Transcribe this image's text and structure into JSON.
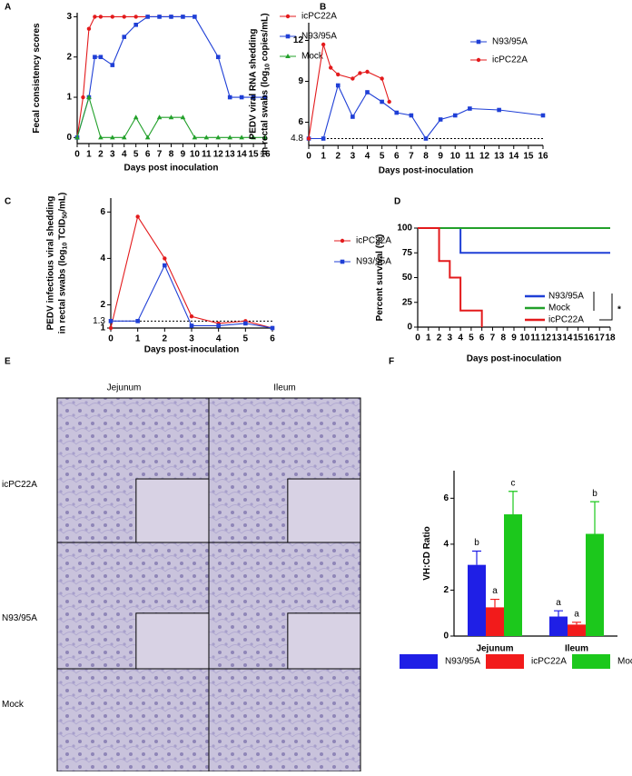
{
  "chart_data": [
    {
      "panel": "A",
      "type": "line",
      "xlabel": "Days post inoculation",
      "ylabel": [
        [
          "Fecal consistency scores"
        ]
      ],
      "xlim": [
        0,
        16
      ],
      "xticks": [
        0,
        1,
        2,
        3,
        4,
        5,
        6,
        7,
        8,
        9,
        10,
        11,
        12,
        13,
        14,
        15,
        16
      ],
      "ylim": [
        -0.15,
        3.1
      ],
      "yticks": [
        0,
        1,
        2,
        3
      ],
      "series": [
        {
          "name": "icPC22A",
          "color": "#e31a1c",
          "marker": "circle",
          "x": [
            0,
            0.5,
            1,
            1.5,
            2,
            3,
            4,
            5,
            6,
            7,
            8,
            9
          ],
          "values": [
            0,
            1,
            2.7,
            3,
            3,
            3,
            3,
            3,
            3,
            3,
            3,
            3
          ]
        },
        {
          "name": "N93/95A",
          "color": "#1f3fd6",
          "marker": "square",
          "x": [
            0,
            1,
            1.5,
            2,
            3,
            4,
            5,
            6,
            7,
            8,
            9,
            10,
            12,
            13,
            14,
            15,
            16
          ],
          "values": [
            0,
            1,
            2,
            2,
            1.8,
            2.5,
            2.8,
            3,
            3,
            3,
            3,
            3,
            2,
            1,
            1,
            1,
            1
          ]
        },
        {
          "name": "Mock",
          "color": "#22a02a",
          "marker": "triangle",
          "x": [
            0,
            1,
            2,
            3,
            4,
            5,
            6,
            7,
            8,
            9,
            10,
            11,
            12,
            13,
            14,
            15,
            16
          ],
          "values": [
            0,
            1,
            0,
            0,
            0,
            0.5,
            0,
            0.5,
            0.5,
            0.5,
            0,
            0,
            0,
            0,
            0,
            0,
            0
          ]
        }
      ]
    },
    {
      "panel": "B",
      "type": "line",
      "xlabel": "Days post-inoculation",
      "ylabel": [
        [
          "PEDV viral RNA shedding"
        ],
        [
          "in rectal swabs (log",
          "10",
          " copies/mL)"
        ]
      ],
      "xlim": [
        0,
        16
      ],
      "xticks": [
        0,
        1,
        2,
        3,
        4,
        5,
        6,
        7,
        8,
        9,
        10,
        11,
        12,
        13,
        14,
        15,
        16
      ],
      "ylim": [
        4.3,
        13.3
      ],
      "yticks": [
        6,
        9,
        12
      ],
      "threshold": 4.8,
      "series": [
        {
          "name": "N93/95A",
          "color": "#1f3fd6",
          "marker": "square",
          "x": [
            0,
            1,
            2,
            3,
            4,
            5,
            6,
            7,
            8,
            9,
            10,
            11,
            13,
            16
          ],
          "values": [
            4.8,
            4.8,
            8.7,
            6.4,
            8.2,
            7.5,
            6.7,
            6.5,
            4.8,
            6.2,
            6.5,
            7.0,
            6.9,
            6.5
          ]
        },
        {
          "name": "icPC22A",
          "color": "#e31a1c",
          "marker": "circle",
          "x": [
            0,
            1,
            1.5,
            2,
            3,
            3.5,
            4,
            5,
            5.5
          ],
          "values": [
            4.8,
            11.7,
            10,
            9.5,
            9.2,
            9.6,
            9.7,
            9.2,
            7.5
          ]
        }
      ]
    },
    {
      "panel": "C",
      "type": "line",
      "xlabel": "Days post-inoculation",
      "ylabel": [
        [
          "PEDV infectious viral shedding"
        ],
        [
          "in rectal swabs (log",
          "10",
          " TCID",
          "50",
          "/mL)"
        ]
      ],
      "xlim": [
        0,
        6
      ],
      "xticks": [
        0,
        1,
        2,
        3,
        4,
        5,
        6
      ],
      "ylim": [
        1,
        6.6
      ],
      "yticks": [
        1,
        2,
        4,
        6
      ],
      "threshold": 1.3,
      "series": [
        {
          "name": "icPC22A",
          "color": "#e31a1c",
          "marker": "circle",
          "x": [
            0,
            1,
            2,
            3,
            4,
            5,
            6
          ],
          "values": [
            1,
            5.8,
            4.0,
            1.5,
            1.2,
            1.3,
            1
          ]
        },
        {
          "name": "N93/95A",
          "color": "#1f3fd6",
          "marker": "square",
          "x": [
            0,
            1,
            2,
            3,
            4,
            5,
            6
          ],
          "values": [
            1.3,
            1.3,
            3.7,
            1.1,
            1.1,
            1.2,
            1
          ]
        }
      ]
    },
    {
      "panel": "D",
      "type": "step",
      "xlabel": "Days post-inoculation",
      "ylabel": [
        [
          "Percent survival (%)"
        ]
      ],
      "xlim": [
        0,
        18
      ],
      "xticks": [
        0,
        1,
        2,
        3,
        4,
        5,
        6,
        7,
        8,
        9,
        10,
        11,
        12,
        13,
        14,
        15,
        16,
        17,
        18
      ],
      "ylim": [
        0,
        100
      ],
      "yticks": [
        0,
        25,
        50,
        75,
        100
      ],
      "annotation": "*",
      "series": [
        {
          "name": "N93/95A",
          "color": "#1f3fd6",
          "x": [
            0,
            4,
            18
          ],
          "values": [
            100,
            75,
            75
          ]
        },
        {
          "name": "Mock",
          "color": "#22a02a",
          "x": [
            0,
            18
          ],
          "values": [
            100,
            100
          ]
        },
        {
          "name": "icPC22A",
          "color": "#e31a1c",
          "x": [
            0,
            2,
            3,
            4,
            6
          ],
          "values": [
            100,
            66.7,
            50,
            16.7,
            0
          ]
        }
      ]
    },
    {
      "panel": "F",
      "type": "grouped_bar",
      "ylabel": [
        [
          "VH:CD Ratio"
        ]
      ],
      "categories": [
        "Jejunum",
        "Ileum"
      ],
      "ylim": [
        0,
        7.2
      ],
      "yticks": [
        0,
        2,
        4,
        6
      ],
      "series": [
        {
          "name": "N93/95A",
          "color": "#1f1fe6",
          "values": [
            3.1,
            0.85
          ],
          "errors": [
            0.6,
            0.25
          ],
          "letters": [
            "b",
            "a"
          ]
        },
        {
          "name": "icPC22A",
          "color": "#f21b1b",
          "values": [
            1.25,
            0.5
          ],
          "errors": [
            0.35,
            0.1
          ],
          "letters": [
            "a",
            "a"
          ]
        },
        {
          "name": "Mock",
          "color": "#1cc81c",
          "values": [
            5.3,
            4.45
          ],
          "errors": [
            1.0,
            1.4
          ],
          "letters": [
            "c",
            "b"
          ]
        }
      ]
    }
  ],
  "image_panel": {
    "panel": "E",
    "columns": [
      "Jejunum",
      "Ileum"
    ],
    "rows": [
      "icPC22A",
      "N93/95A",
      "Mock"
    ]
  }
}
